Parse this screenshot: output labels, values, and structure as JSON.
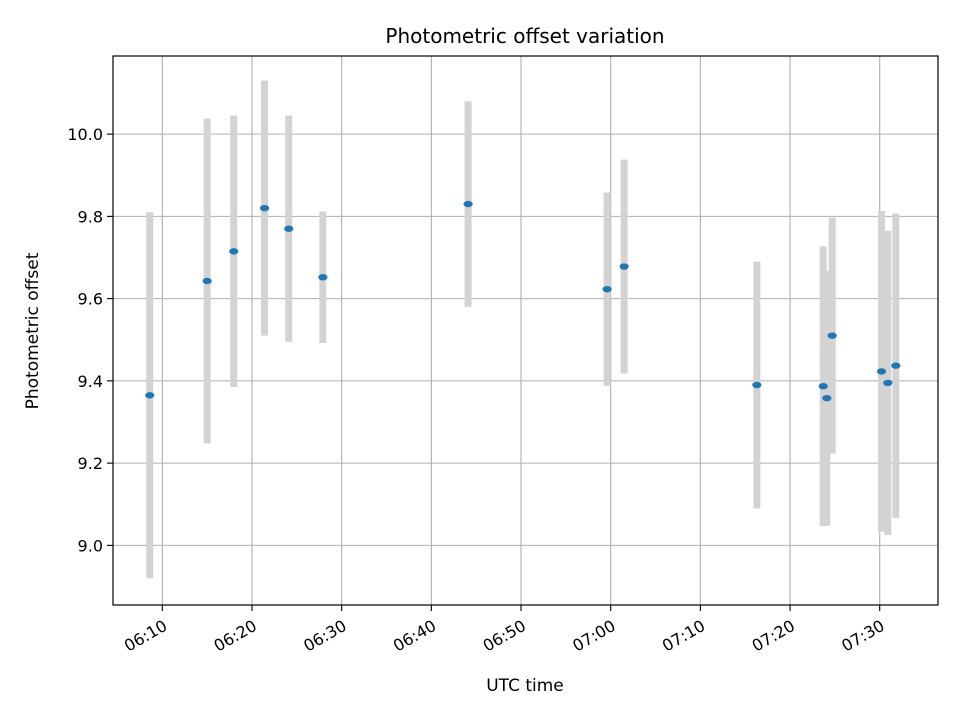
{
  "chart_data": {
    "type": "scatter",
    "title": "Photometric offset variation",
    "xlabel": "UTC time",
    "ylabel": "Photometric offset",
    "xlim": [
      "06:04:30",
      "07:36:30"
    ],
    "ylim": [
      8.855,
      10.19
    ],
    "x_ticks": [
      "06:10",
      "06:20",
      "06:30",
      "06:40",
      "06:50",
      "07:00",
      "07:10",
      "07:20",
      "07:30"
    ],
    "y_ticks": [
      "9.0",
      "9.2",
      "9.4",
      "9.6",
      "9.8",
      "10.0"
    ],
    "grid": true,
    "marker_color": "#1f77b4",
    "errorbar_color": "#d3d3d3",
    "points": [
      {
        "x": "06:08:36",
        "y": 9.365,
        "err": 0.445
      },
      {
        "x": "06:15:00",
        "y": 9.643,
        "err": 0.395
      },
      {
        "x": "06:17:58",
        "y": 9.715,
        "err": 0.33
      },
      {
        "x": "06:21:24",
        "y": 9.82,
        "err": 0.31
      },
      {
        "x": "06:24:06",
        "y": 9.77,
        "err": 0.275
      },
      {
        "x": "06:27:54",
        "y": 9.652,
        "err": 0.16
      },
      {
        "x": "06:44:06",
        "y": 9.83,
        "err": 0.25
      },
      {
        "x": "06:59:36",
        "y": 9.623,
        "err": 0.235
      },
      {
        "x": "07:01:30",
        "y": 9.678,
        "err": 0.26
      },
      {
        "x": "07:16:18",
        "y": 9.39,
        "err": 0.3
      },
      {
        "x": "07:23:42",
        "y": 9.387,
        "err": 0.34
      },
      {
        "x": "07:24:06",
        "y": 9.358,
        "err": 0.31
      },
      {
        "x": "07:24:42",
        "y": 9.51,
        "err": 0.287
      },
      {
        "x": "07:30:12",
        "y": 9.423,
        "err": 0.39
      },
      {
        "x": "07:30:54",
        "y": 9.395,
        "err": 0.37
      },
      {
        "x": "07:31:48",
        "y": 9.437,
        "err": 0.37
      }
    ]
  }
}
